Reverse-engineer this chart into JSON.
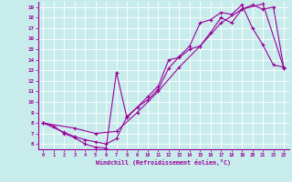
{
  "xlabel": "Windchill (Refroidissement éolien,°C)",
  "bg_color": "#c8ecec",
  "line_color": "#990099",
  "grid_color": "#ffffff",
  "xlim": [
    -0.5,
    23.5
  ],
  "ylim": [
    5.5,
    19.5
  ],
  "xticks": [
    0,
    1,
    2,
    3,
    4,
    5,
    6,
    7,
    8,
    9,
    10,
    11,
    12,
    13,
    14,
    15,
    16,
    17,
    18,
    19,
    20,
    21,
    22,
    23
  ],
  "yticks": [
    6,
    7,
    8,
    9,
    10,
    11,
    12,
    13,
    14,
    15,
    16,
    17,
    18,
    19
  ],
  "line1_x": [
    0,
    1,
    2,
    3,
    4,
    5,
    6,
    7,
    8,
    9,
    10,
    11,
    12,
    13,
    14,
    15,
    16,
    17,
    18,
    19,
    20,
    21,
    22,
    23
  ],
  "line1_y": [
    8,
    7.7,
    7.0,
    6.6,
    6.0,
    5.7,
    5.6,
    12.8,
    8.5,
    9.5,
    10.5,
    11.5,
    14.0,
    14.2,
    15.0,
    15.3,
    16.6,
    18.0,
    17.5,
    18.8,
    19.2,
    18.8,
    19.0,
    13.2
  ],
  "line2_x": [
    0,
    2,
    3,
    4,
    5,
    6,
    7,
    8,
    9,
    10,
    11,
    12,
    13,
    14,
    15,
    16,
    17,
    18,
    19,
    20,
    21,
    22,
    23
  ],
  "line2_y": [
    8,
    7.1,
    6.7,
    6.4,
    6.2,
    6.0,
    6.5,
    8.6,
    9.5,
    10.2,
    11.2,
    13.2,
    14.3,
    15.3,
    17.5,
    17.8,
    18.5,
    18.3,
    19.2,
    17.0,
    15.4,
    13.5,
    13.3
  ],
  "line3_x": [
    0,
    3,
    5,
    7,
    9,
    11,
    13,
    15,
    17,
    19,
    21,
    23
  ],
  "line3_y": [
    8,
    7.5,
    7.0,
    7.2,
    9.0,
    11.0,
    13.3,
    15.3,
    17.5,
    18.8,
    19.3,
    13.2
  ]
}
